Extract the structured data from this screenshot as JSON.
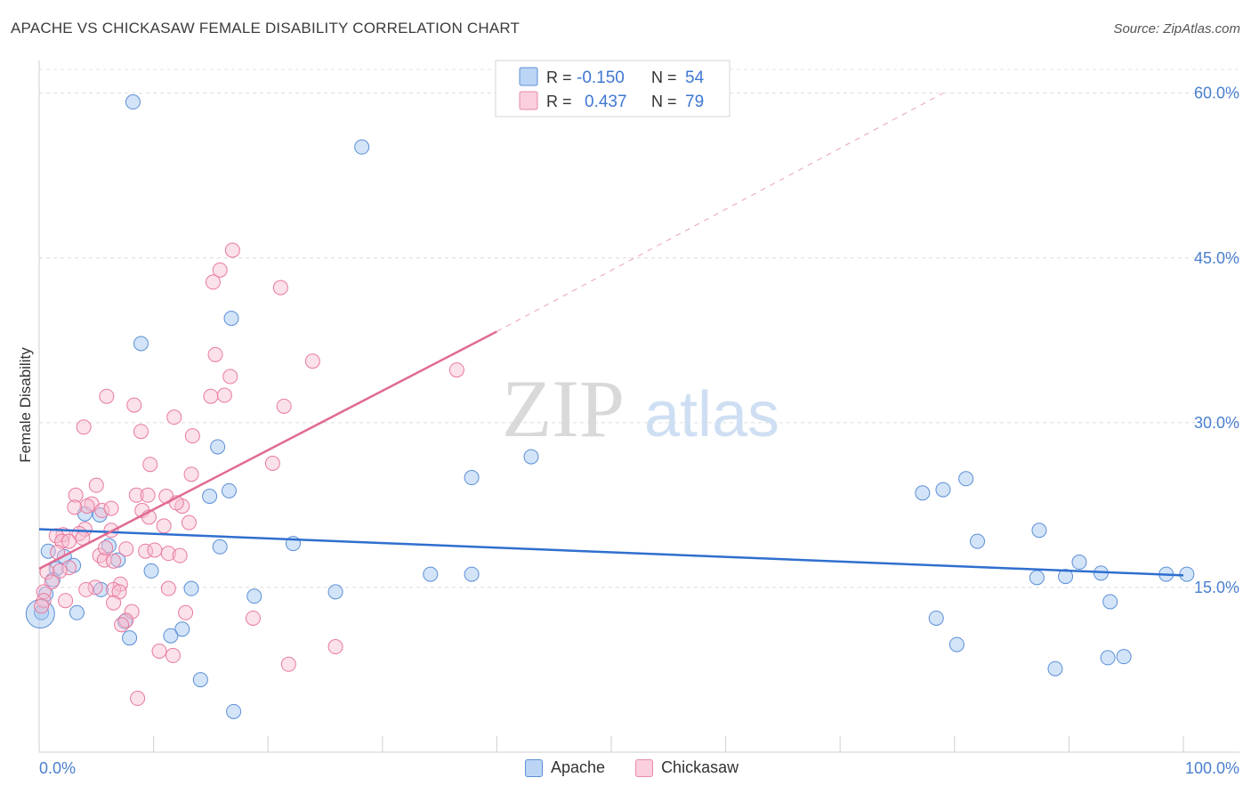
{
  "title": "APACHE VS CHICKASAW FEMALE DISABILITY CORRELATION CHART",
  "source": "Source: ZipAtlas.com",
  "watermark": {
    "zip": "ZIP",
    "atlas": "atlas"
  },
  "stats_box": {
    "rows": [
      {
        "series": "Apache",
        "r_label": "R =",
        "r_value": "-0.150",
        "n_label": "N =",
        "n_value": "54",
        "color": "#9ec3f0",
        "border": "#5b8fd6"
      },
      {
        "series": "Chickasaw",
        "r_label": "R =",
        "r_value": "0.437",
        "n_label": "N =",
        "n_value": "79",
        "color": "#f7bdd0",
        "border": "#e68aa9"
      }
    ]
  },
  "chart_data": {
    "type": "scatter",
    "xlabel": "",
    "ylabel": "Female Disability",
    "xlim": [
      0,
      100
    ],
    "ylim": [
      0,
      62
    ],
    "x_tick_labels": [
      "0.0%",
      "100.0%"
    ],
    "y_ticks": [
      15,
      30,
      45,
      60
    ],
    "y_tick_labels": [
      "15.0%",
      "30.0%",
      "45.0%",
      "60.0%"
    ],
    "grid": "horizontal dashed",
    "legend": "bottom-center",
    "series": [
      {
        "name": "Apache",
        "color": "#5b8fd6",
        "fill": "rgba(158,195,240,0.45)",
        "trend": {
          "x": [
            0,
            100
          ],
          "y": [
            20.3,
            16.1
          ],
          "dashed_ext": false
        },
        "points": [
          [
            8.2,
            59.2
          ],
          [
            28.2,
            55.1
          ],
          [
            16.8,
            39.5
          ],
          [
            8.9,
            37.2
          ],
          [
            15.6,
            27.8
          ],
          [
            37.8,
            25.0
          ],
          [
            43.0,
            26.9
          ],
          [
            16.6,
            23.8
          ],
          [
            14.9,
            23.3
          ],
          [
            4.0,
            21.7
          ],
          [
            5.3,
            21.6
          ],
          [
            6.1,
            18.8
          ],
          [
            0.8,
            18.3
          ],
          [
            2.2,
            17.8
          ],
          [
            6.9,
            17.5
          ],
          [
            3.0,
            17.0
          ],
          [
            15.8,
            18.7
          ],
          [
            22.2,
            19.0
          ],
          [
            9.8,
            16.5
          ],
          [
            1.5,
            16.7
          ],
          [
            1.2,
            15.7
          ],
          [
            5.4,
            14.8
          ],
          [
            13.3,
            14.9
          ],
          [
            18.8,
            14.2
          ],
          [
            25.9,
            14.6
          ],
          [
            0.6,
            14.4
          ],
          [
            0.2,
            12.7
          ],
          [
            3.3,
            12.7
          ],
          [
            7.5,
            11.9
          ],
          [
            12.5,
            11.2
          ],
          [
            7.9,
            10.4
          ],
          [
            11.5,
            10.6
          ],
          [
            14.1,
            6.6
          ],
          [
            17.0,
            3.7
          ],
          [
            34.2,
            16.2
          ],
          [
            37.8,
            16.2
          ],
          [
            77.2,
            23.6
          ],
          [
            79.0,
            23.9
          ],
          [
            81.0,
            24.9
          ],
          [
            82.0,
            19.2
          ],
          [
            87.4,
            20.2
          ],
          [
            87.2,
            15.9
          ],
          [
            89.7,
            16.0
          ],
          [
            90.9,
            17.3
          ],
          [
            92.8,
            16.3
          ],
          [
            93.6,
            13.7
          ],
          [
            93.4,
            8.6
          ],
          [
            94.8,
            8.7
          ],
          [
            100.3,
            16.2
          ],
          [
            98.5,
            16.2
          ],
          [
            78.4,
            12.2
          ],
          [
            80.2,
            9.8
          ],
          [
            88.8,
            7.6
          ],
          [
            0.1,
            12.6
          ]
        ]
      },
      {
        "name": "Chickasaw",
        "color": "#e87a9e",
        "fill": "rgba(247,189,208,0.45)",
        "trend": {
          "x": [
            0,
            40
          ],
          "y": [
            16.7,
            38.3
          ],
          "dashed_ext_to": [
            79,
            60.0
          ]
        },
        "points": [
          [
            16.9,
            45.7
          ],
          [
            15.8,
            43.9
          ],
          [
            15.2,
            42.8
          ],
          [
            21.1,
            42.3
          ],
          [
            15.4,
            36.2
          ],
          [
            23.9,
            35.6
          ],
          [
            36.5,
            34.8
          ],
          [
            16.7,
            34.2
          ],
          [
            5.9,
            32.4
          ],
          [
            8.3,
            31.6
          ],
          [
            15.0,
            32.4
          ],
          [
            16.2,
            32.5
          ],
          [
            21.4,
            31.5
          ],
          [
            11.8,
            30.5
          ],
          [
            3.9,
            29.6
          ],
          [
            8.9,
            29.2
          ],
          [
            13.4,
            28.8
          ],
          [
            9.7,
            26.2
          ],
          [
            20.4,
            26.3
          ],
          [
            13.3,
            25.3
          ],
          [
            5.0,
            24.3
          ],
          [
            8.5,
            23.4
          ],
          [
            11.1,
            23.3
          ],
          [
            3.2,
            23.4
          ],
          [
            4.6,
            22.6
          ],
          [
            5.5,
            22.0
          ],
          [
            4.2,
            22.4
          ],
          [
            6.3,
            22.2
          ],
          [
            3.1,
            22.3
          ],
          [
            9.0,
            22.0
          ],
          [
            12.5,
            22.4
          ],
          [
            9.6,
            21.4
          ],
          [
            10.9,
            20.6
          ],
          [
            13.1,
            20.9
          ],
          [
            4.0,
            20.3
          ],
          [
            6.3,
            20.2
          ],
          [
            2.1,
            19.8
          ],
          [
            3.5,
            19.9
          ],
          [
            1.5,
            19.7
          ],
          [
            2.0,
            19.2
          ],
          [
            2.6,
            19.2
          ],
          [
            3.8,
            19.5
          ],
          [
            7.6,
            18.5
          ],
          [
            9.3,
            18.3
          ],
          [
            10.1,
            18.4
          ],
          [
            11.3,
            18.1
          ],
          [
            12.3,
            17.9
          ],
          [
            1.6,
            18.2
          ],
          [
            5.3,
            17.9
          ],
          [
            5.7,
            17.5
          ],
          [
            6.5,
            17.4
          ],
          [
            2.6,
            16.8
          ],
          [
            1.8,
            16.5
          ],
          [
            0.7,
            16.4
          ],
          [
            1.1,
            15.5
          ],
          [
            7.1,
            15.3
          ],
          [
            4.9,
            15.0
          ],
          [
            11.3,
            14.9
          ],
          [
            6.5,
            14.8
          ],
          [
            4.1,
            14.8
          ],
          [
            7.0,
            14.6
          ],
          [
            0.4,
            14.6
          ],
          [
            0.4,
            13.8
          ],
          [
            2.3,
            13.8
          ],
          [
            6.5,
            13.6
          ],
          [
            0.2,
            13.3
          ],
          [
            12.8,
            12.7
          ],
          [
            8.1,
            12.8
          ],
          [
            18.7,
            12.2
          ],
          [
            7.6,
            12.0
          ],
          [
            7.2,
            11.6
          ],
          [
            25.9,
            9.6
          ],
          [
            10.5,
            9.2
          ],
          [
            11.7,
            8.8
          ],
          [
            21.8,
            8.0
          ],
          [
            8.6,
            4.9
          ],
          [
            9.5,
            23.4
          ],
          [
            12.0,
            22.7
          ],
          [
            5.8,
            18.6
          ]
        ]
      }
    ]
  }
}
